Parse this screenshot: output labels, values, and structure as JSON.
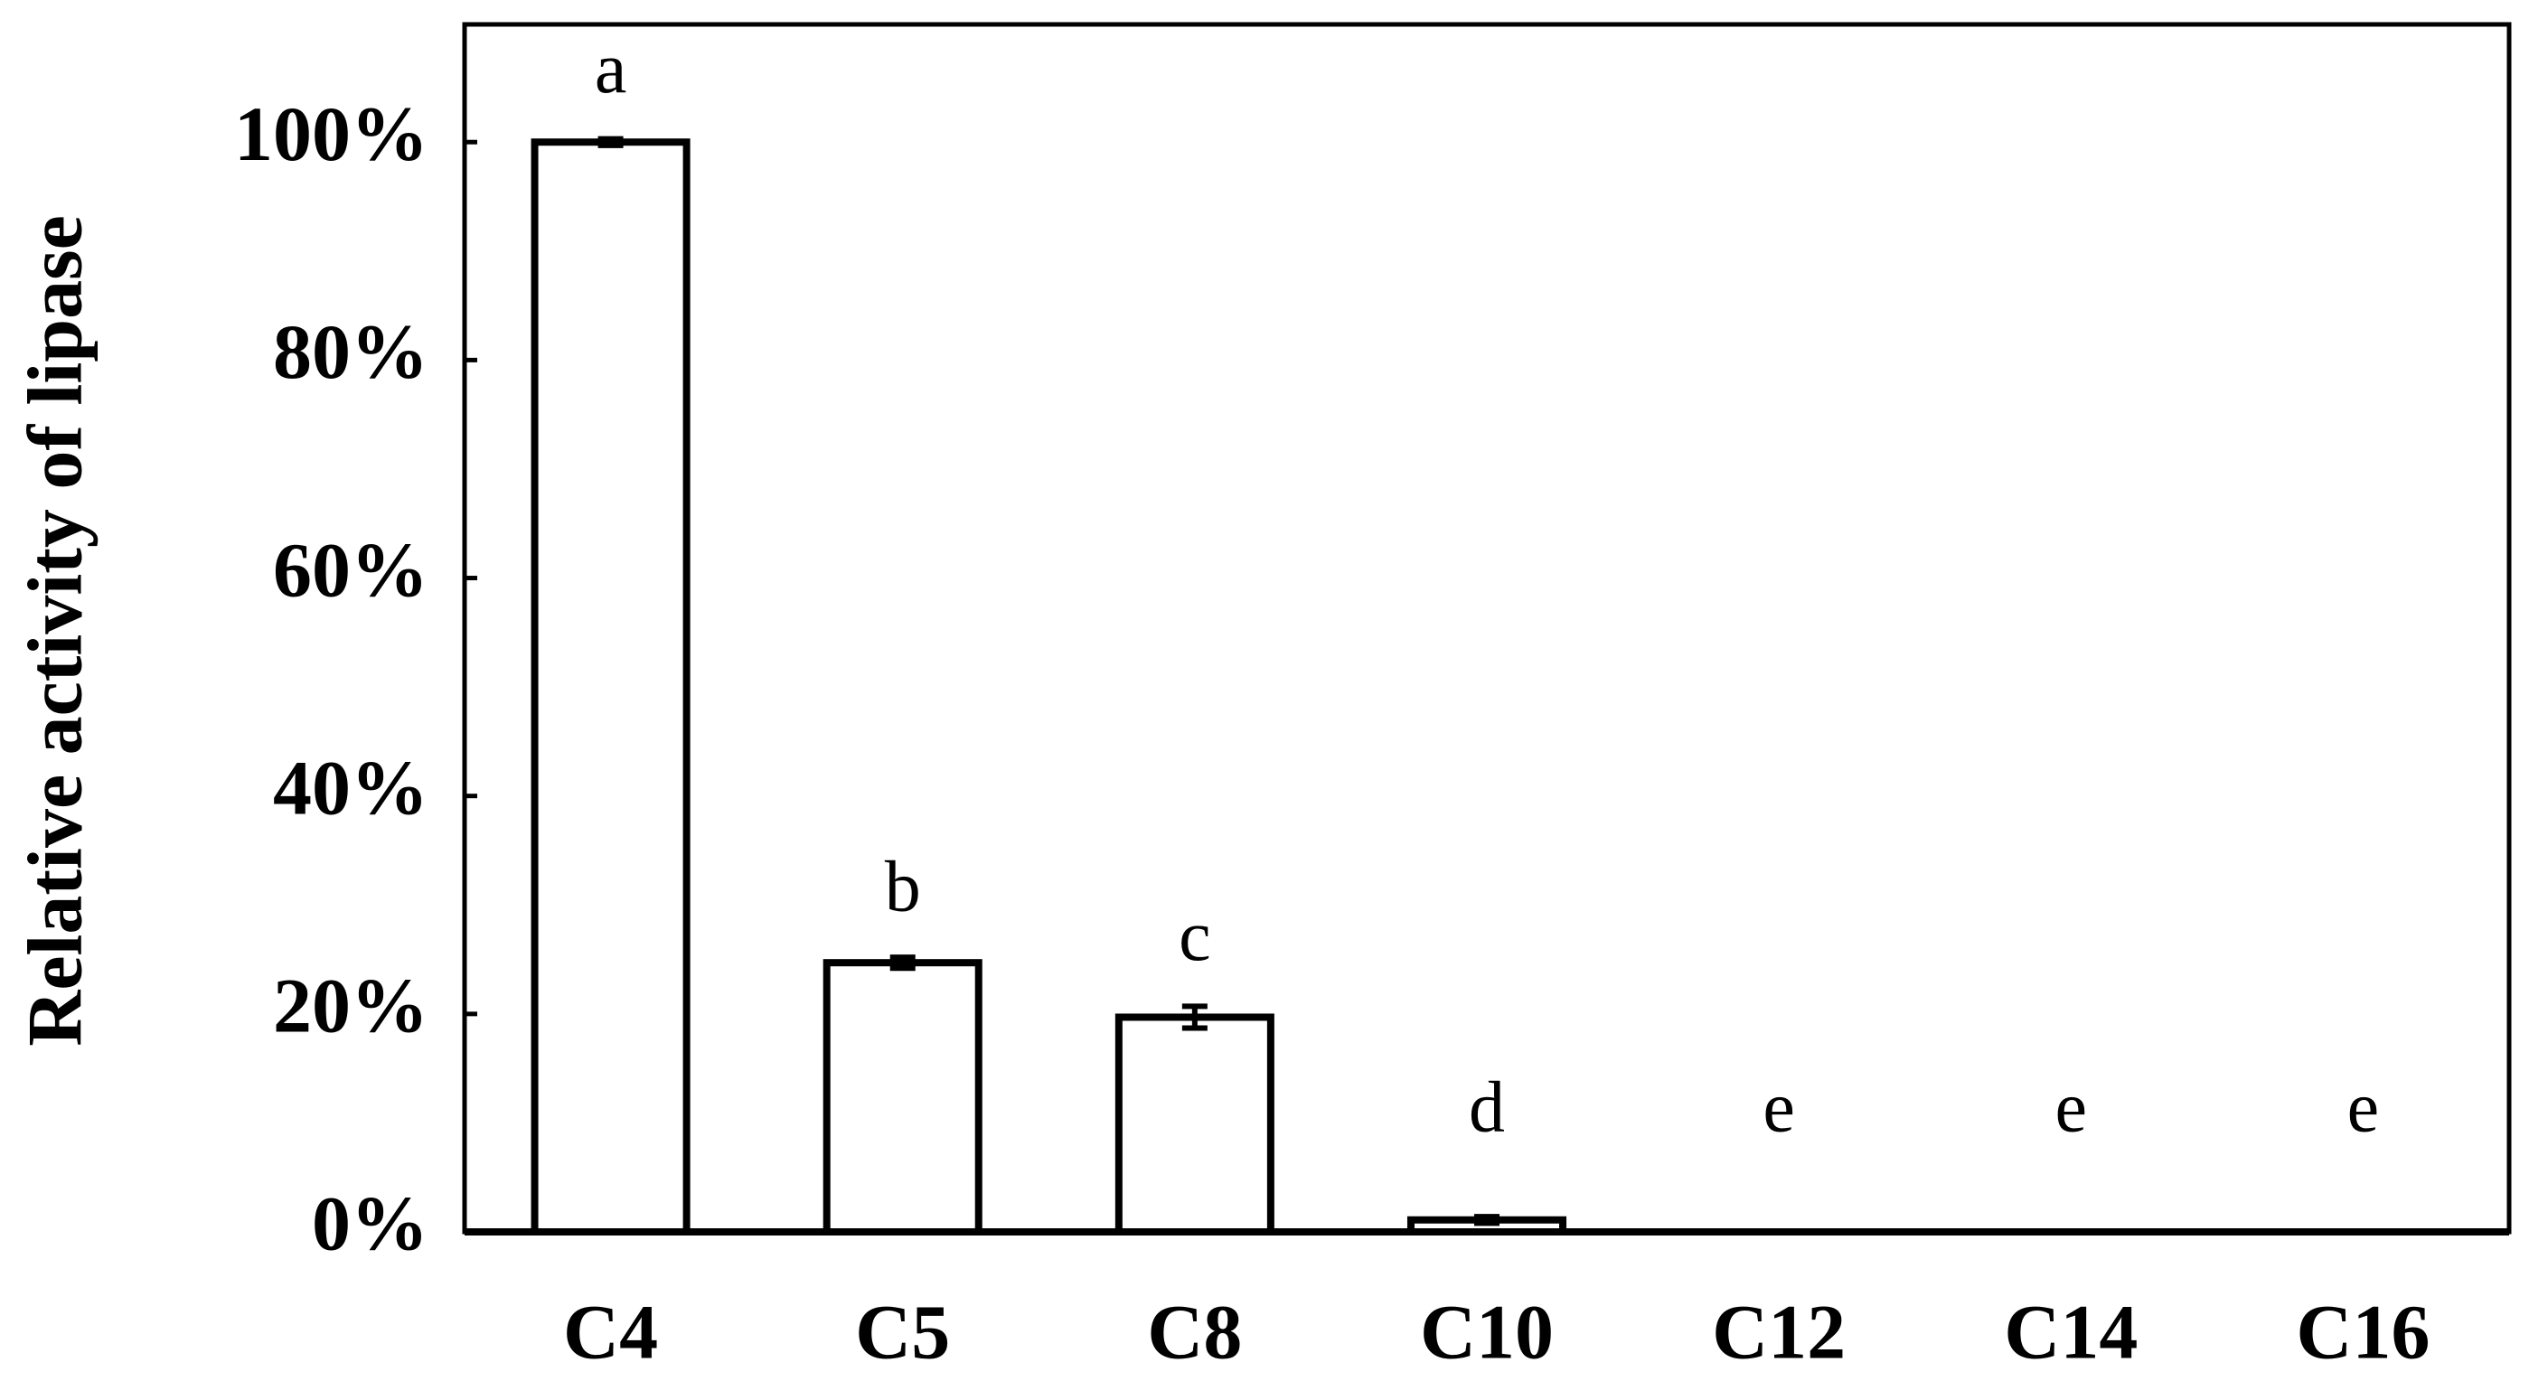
{
  "chart_data": {
    "type": "bar",
    "ylabel": "Relative activity of lipase",
    "categories": [
      "C4",
      "C5",
      "C8",
      "C10",
      "C12",
      "C14",
      "C16"
    ],
    "values": [
      100,
      24.7,
      19.7,
      1.1,
      0,
      0,
      0
    ],
    "errors": [
      0.3,
      0.5,
      1.0,
      0.3,
      0,
      0,
      0
    ],
    "annotations": [
      "a",
      "b",
      "c",
      "d",
      "e",
      "e",
      "e"
    ],
    "color": "#ffffff",
    "ylim": [
      0,
      110.8
    ],
    "yticks": [
      {
        "value": 0,
        "label": "0%"
      },
      {
        "value": 20,
        "label": "20%"
      },
      {
        "value": 40,
        "label": "40%"
      },
      {
        "value": 60,
        "label": "60%"
      },
      {
        "value": 80,
        "label": "80%"
      },
      {
        "value": 100,
        "label": "100%"
      }
    ],
    "grid": false
  }
}
